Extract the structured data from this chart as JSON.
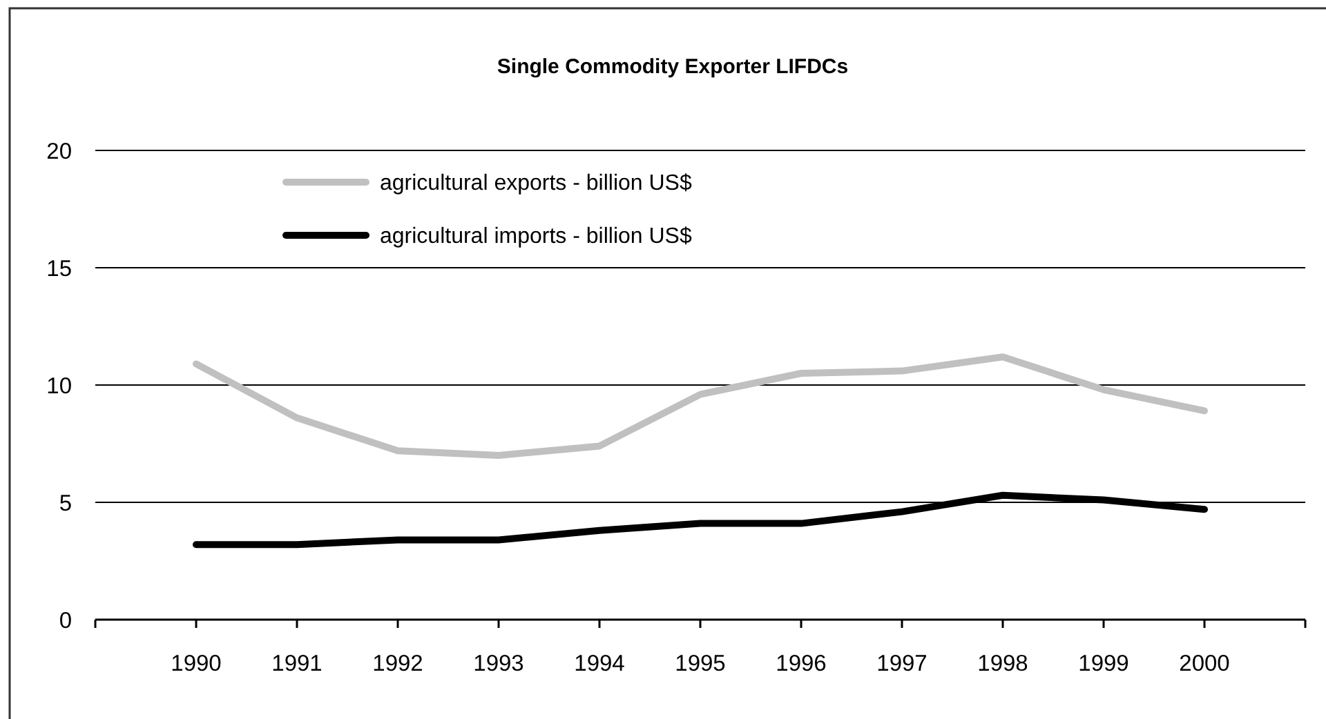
{
  "chart_data": {
    "type": "line",
    "title": "Single Commodity Exporter LIFDCs",
    "x": [
      1990,
      1991,
      1992,
      1993,
      1994,
      1995,
      1996,
      1997,
      1998,
      1999,
      2000
    ],
    "xlim": [
      1989,
      2001
    ],
    "xticks": [
      {
        "value": 1989,
        "label": null
      },
      1990,
      1991,
      1992,
      1993,
      1994,
      1995,
      1996,
      1997,
      1998,
      1999,
      2000,
      {
        "value": 2001,
        "label": null
      }
    ],
    "ylim": [
      0,
      20
    ],
    "yticks": [
      0,
      5,
      10,
      15,
      20
    ],
    "grid": "y",
    "legend": "top left",
    "series": [
      {
        "name": "agricultural exports - billion US$",
        "color": "#c0c0c0",
        "values": [
          10.9,
          8.6,
          7.2,
          7.0,
          7.4,
          9.6,
          10.5,
          10.6,
          11.2,
          9.8,
          8.9
        ]
      },
      {
        "name": "agricultural imports - billion US$",
        "color": "#000000",
        "values": [
          3.2,
          3.2,
          3.4,
          3.4,
          3.8,
          4.1,
          4.1,
          4.6,
          5.3,
          5.1,
          4.7
        ]
      }
    ]
  }
}
